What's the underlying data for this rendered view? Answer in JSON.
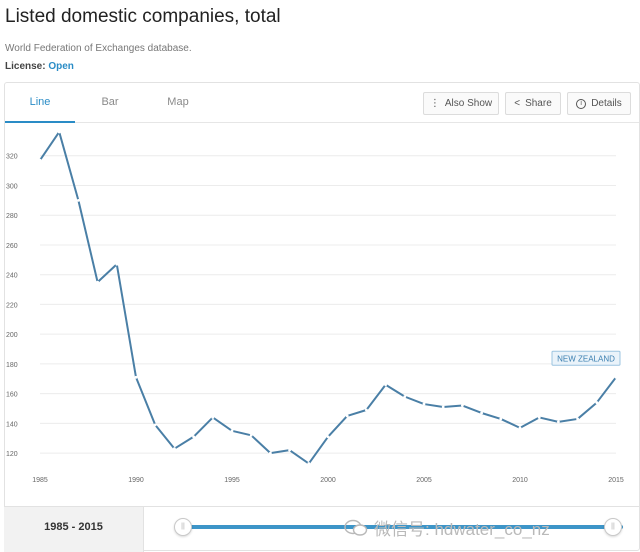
{
  "page": {
    "title": "Listed domestic companies, total",
    "source": "World Federation of Exchanges database.",
    "license_label": "License:",
    "license_value": "Open"
  },
  "tabs": [
    {
      "label": "Line",
      "active": true
    },
    {
      "label": "Bar",
      "active": false
    },
    {
      "label": "Map",
      "active": false
    }
  ],
  "toolbar": {
    "also_show": "Also Show",
    "share": "Share",
    "details": "Details"
  },
  "range": {
    "label": "1985 - 2015"
  },
  "watermark": {
    "text": "微信号: hdwater_co_nz"
  },
  "colors": {
    "accent": "#2a8cc6",
    "line": "#4a7fa6"
  },
  "chart_data": {
    "type": "line",
    "title": "",
    "xlabel": "",
    "ylabel": "",
    "xlim": [
      1985,
      2015
    ],
    "ylim": [
      110,
      340
    ],
    "yticks": [
      120,
      140,
      160,
      180,
      200,
      220,
      240,
      260,
      280,
      300,
      320
    ],
    "xticks": [
      1985,
      1990,
      1995,
      2000,
      2005,
      2010,
      2015
    ],
    "grid": "horizontal",
    "series": [
      {
        "name": "NEW ZEALAND",
        "x": [
          1985,
          1986,
          1987,
          1988,
          1989,
          1990,
          1991,
          1992,
          1993,
          1994,
          1995,
          1996,
          1997,
          1998,
          1999,
          2000,
          2001,
          2002,
          2003,
          2004,
          2005,
          2006,
          2007,
          2008,
          2009,
          2010,
          2011,
          2012,
          2013,
          2014,
          2015
        ],
        "y": [
          317,
          336,
          290,
          235,
          247,
          171,
          139,
          123,
          131,
          144,
          135,
          132,
          120,
          122,
          113,
          131,
          145,
          149,
          166,
          158,
          153,
          151,
          152,
          147,
          143,
          137,
          144,
          141,
          143,
          154,
          171
        ]
      }
    ]
  }
}
